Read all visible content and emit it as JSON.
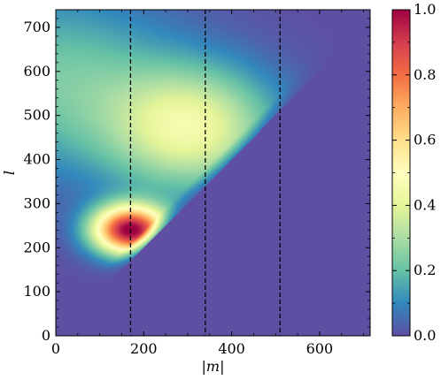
{
  "chart_data": {
    "type": "heatmap",
    "title": "",
    "xlabel": "|m|",
    "ylabel": "l",
    "xlim": [
      0,
      715
    ],
    "ylim": [
      0,
      740
    ],
    "x_ticks": [
      0,
      200,
      400,
      600
    ],
    "x_tick_labels": [
      "0",
      "200",
      "400",
      "600"
    ],
    "y_ticks": [
      0,
      100,
      200,
      300,
      400,
      500,
      600,
      700
    ],
    "y_tick_labels": [
      "0",
      "100",
      "200",
      "300",
      "400",
      "500",
      "600",
      "700"
    ],
    "vertical_lines": [
      170,
      340,
      510
    ],
    "vertical_line_style": "dashed",
    "colormap": "Spectral_r",
    "background_color": "#5e4fa2",
    "valid_region": "l >= |m|",
    "peak": {
      "m": 170,
      "l": 240,
      "value": 1.0
    },
    "colorbar": {
      "min": 0.0,
      "max": 1.0,
      "ticks": [
        0.0,
        0.2,
        0.4,
        0.6,
        0.8,
        1.0
      ],
      "tick_labels": [
        "0.0",
        "0.2",
        "0.4",
        "0.6",
        "0.8",
        "1.0"
      ]
    }
  }
}
